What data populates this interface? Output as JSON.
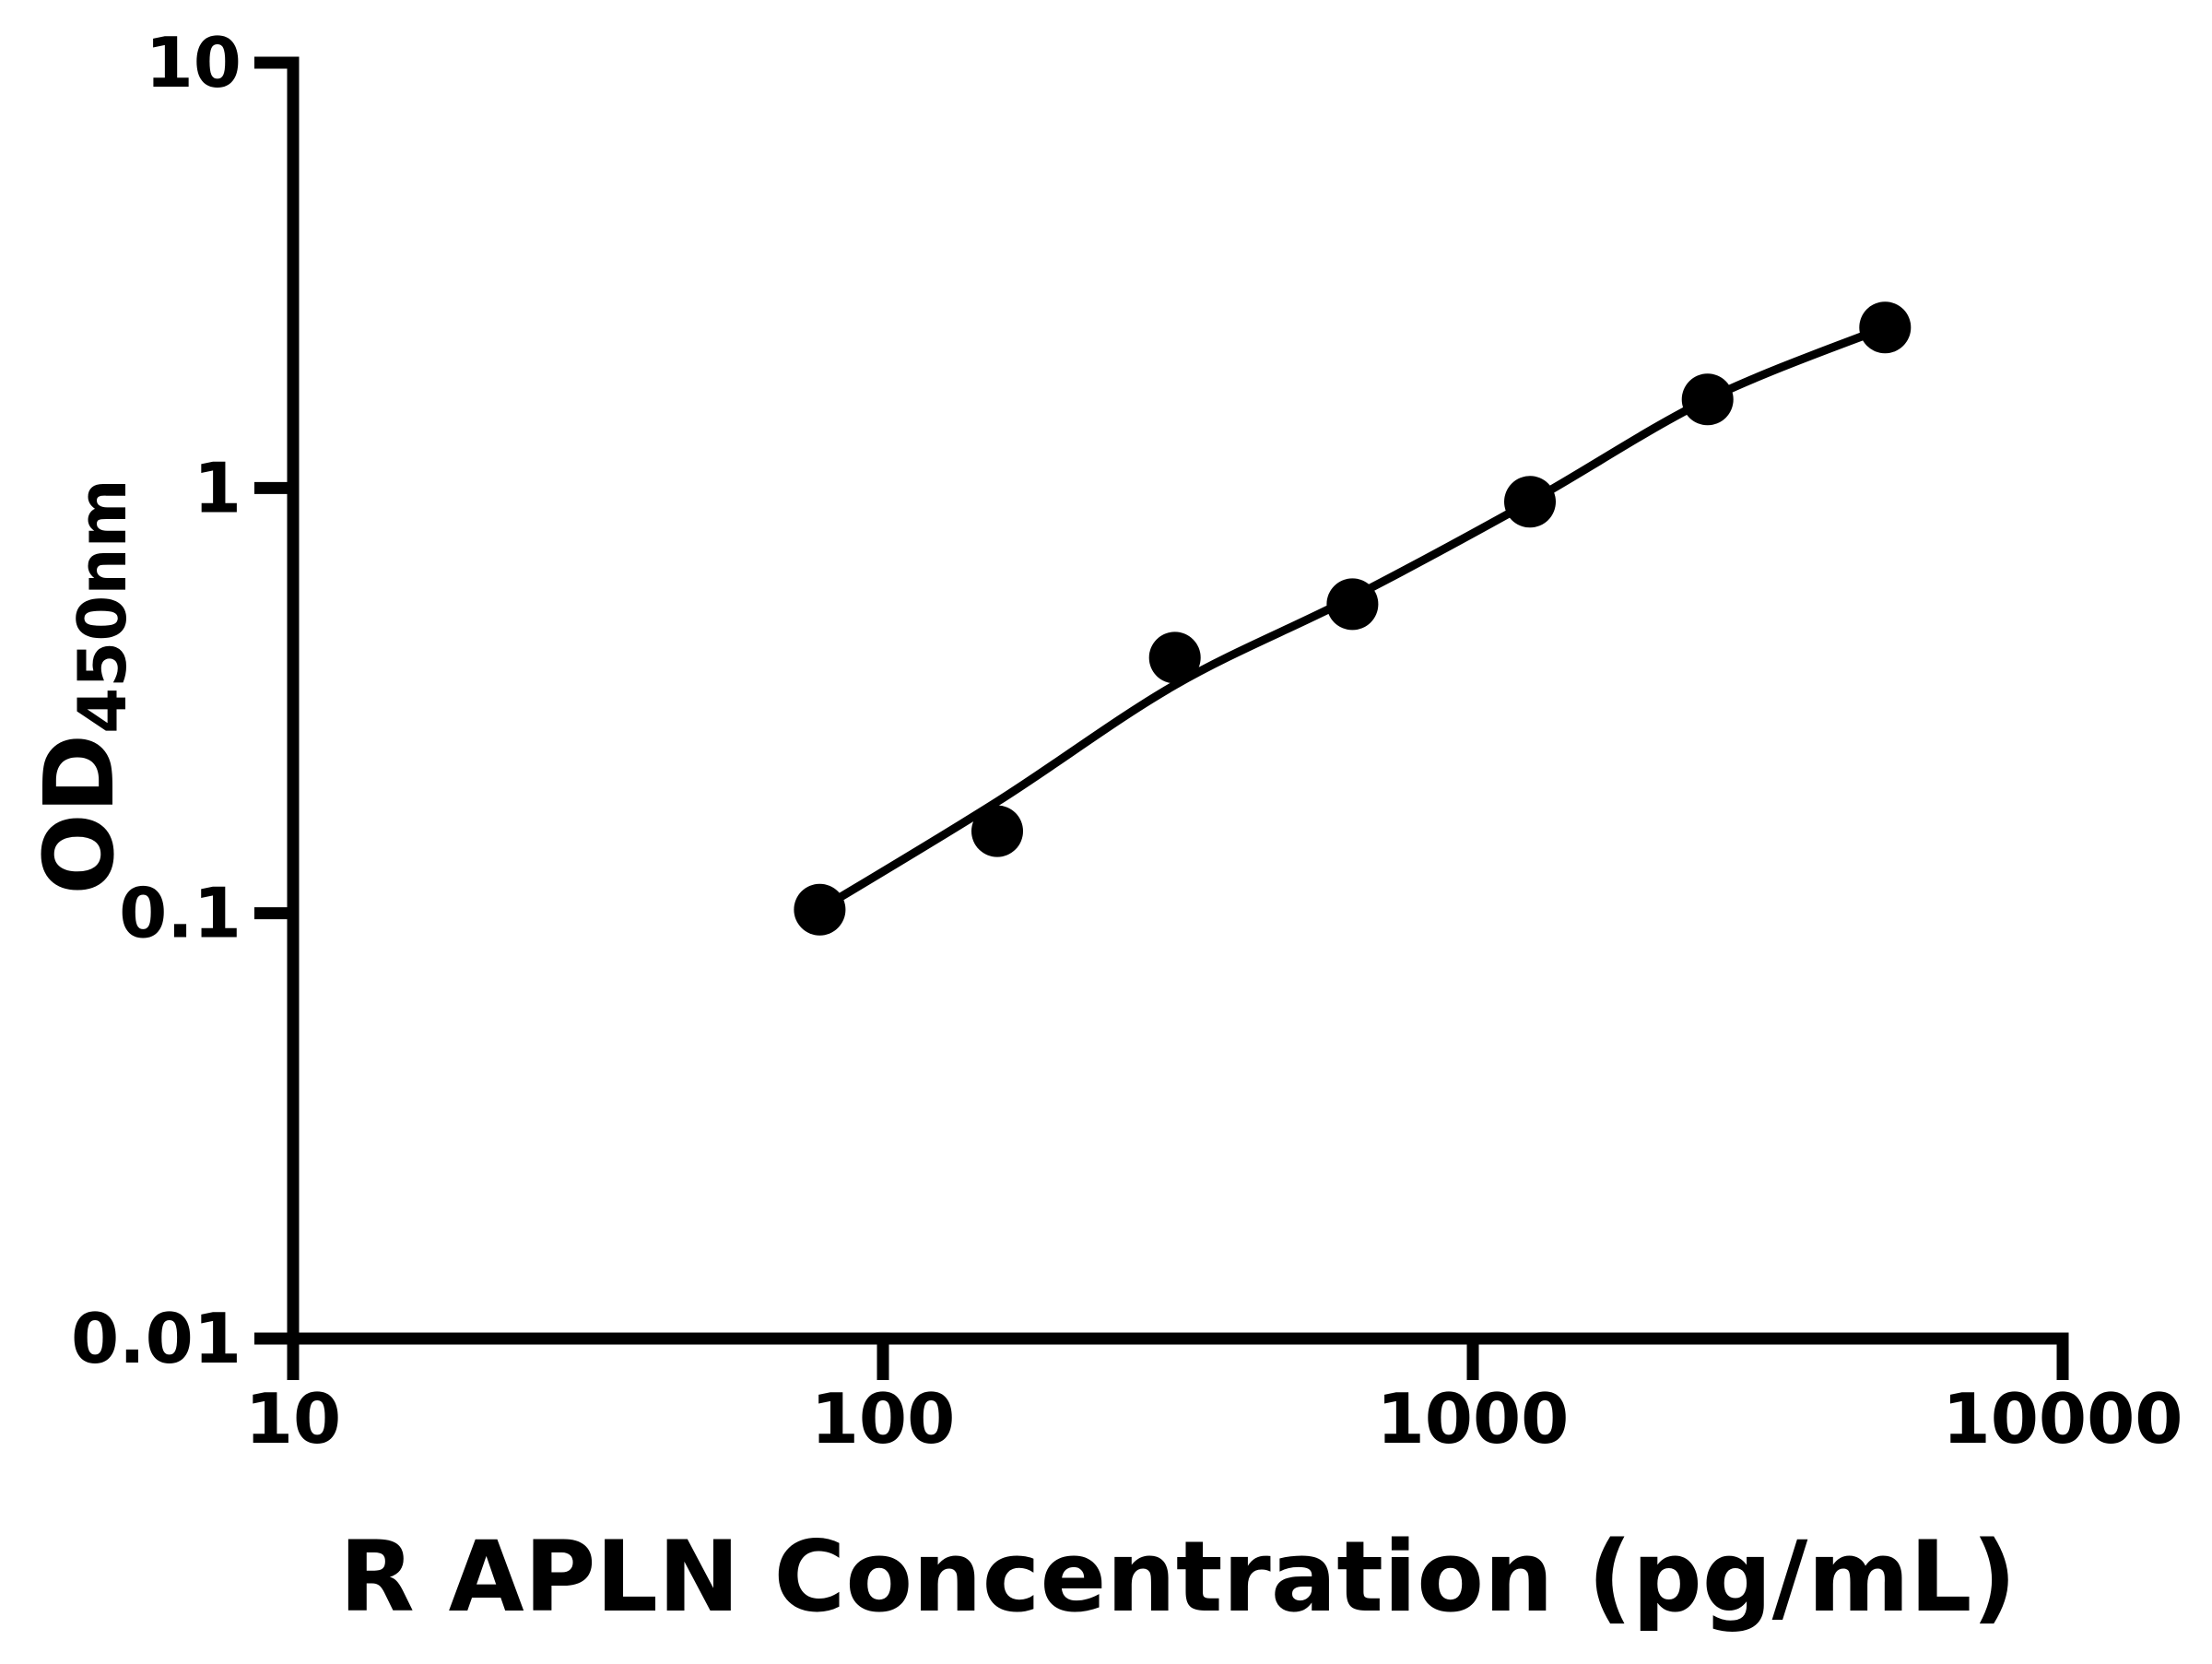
{
  "chart_data": {
    "type": "scatter",
    "title": "",
    "xlabel": "R APLN Concentration (pg/mL)",
    "ylabel": "OD450nm",
    "ylabel_main": "OD",
    "ylabel_sub": "450nm",
    "x_scale": "log",
    "y_scale": "log",
    "xlim": [
      10,
      10000
    ],
    "ylim": [
      0.01,
      10
    ],
    "grid": false,
    "legend": "none",
    "x_ticks": {
      "values": [
        10,
        100,
        1000,
        10000
      ],
      "labels": [
        "10",
        "100",
        "1000",
        "10000"
      ]
    },
    "y_ticks": {
      "values": [
        10,
        1,
        0.1,
        0.01
      ],
      "labels": [
        "10",
        "1",
        "0.1",
        "0.01"
      ]
    },
    "colors": {
      "background": "#ffffff",
      "axis": "#000000",
      "points": "#000000",
      "curve": "#000000",
      "text": "#000000"
    },
    "series": [
      {
        "name": "standard-points",
        "marker": "filled-circle",
        "points": [
          {
            "x": 78.13,
            "y": 0.102
          },
          {
            "x": 156.25,
            "y": 0.156
          },
          {
            "x": 312.5,
            "y": 0.399
          },
          {
            "x": 625,
            "y": 0.533
          },
          {
            "x": 1250,
            "y": 0.928
          },
          {
            "x": 2500,
            "y": 1.615
          },
          {
            "x": 5000,
            "y": 2.385
          }
        ]
      }
    ],
    "fit_curve": {
      "name": "standard-fit-curve",
      "points": [
        {
          "x": 78.13,
          "y": 0.102
        },
        {
          "x": 156.25,
          "y": 0.183
        },
        {
          "x": 312.5,
          "y": 0.344
        },
        {
          "x": 625,
          "y": 0.553
        },
        {
          "x": 1250,
          "y": 0.928
        },
        {
          "x": 2500,
          "y": 1.615
        },
        {
          "x": 5000,
          "y": 2.385
        }
      ]
    }
  }
}
